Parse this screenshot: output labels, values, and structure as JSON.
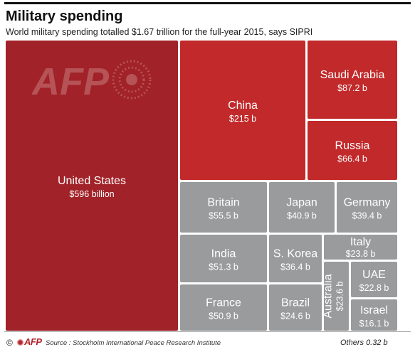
{
  "header": {
    "title": "Military spending",
    "subtitle": "World military spending totalled $1.67 trillion for the full-year 2015, says SIPRI"
  },
  "footer": {
    "copyright": "©",
    "brand": "AFP",
    "source": "Source : Stockholm International Peace Research Institute",
    "others": "Others 0.32 b"
  },
  "watermark_text": "AFP",
  "colors": {
    "us": "#a12228",
    "red": "#c2292a",
    "gray": "#9a9b9d"
  },
  "chart_data": {
    "type": "treemap",
    "title": "Military spending",
    "subtitle": "World military spending totalled $1.67 trillion for the full-year 2015, says SIPRI",
    "unit": "billion USD",
    "items": [
      {
        "name": "United States",
        "value": 596,
        "label": "$596 billion",
        "group": "us"
      },
      {
        "name": "China",
        "value": 215,
        "label": "$215 b",
        "group": "red"
      },
      {
        "name": "Saudi Arabia",
        "value": 87.2,
        "label": "$87.2 b",
        "group": "red"
      },
      {
        "name": "Russia",
        "value": 66.4,
        "label": "$66.4 b",
        "group": "red"
      },
      {
        "name": "Britain",
        "value": 55.5,
        "label": "$55.5 b",
        "group": "gray"
      },
      {
        "name": "Japan",
        "value": 40.9,
        "label": "$40.9 b",
        "group": "gray"
      },
      {
        "name": "Germany",
        "value": 39.4,
        "label": "$39.4 b",
        "group": "gray"
      },
      {
        "name": "India",
        "value": 51.3,
        "label": "$51.3 b",
        "group": "gray"
      },
      {
        "name": "S. Korea",
        "value": 36.4,
        "label": "$36.4 b",
        "group": "gray"
      },
      {
        "name": "Italy",
        "value": 23.8,
        "label": "$23.8 b",
        "group": "gray"
      },
      {
        "name": "France",
        "value": 50.9,
        "label": "$50.9 b",
        "group": "gray"
      },
      {
        "name": "Brazil",
        "value": 24.6,
        "label": "$24.6 b",
        "group": "gray"
      },
      {
        "name": "Australia",
        "value": 23.6,
        "label": "$23.6 b",
        "group": "gray"
      },
      {
        "name": "UAE",
        "value": 22.8,
        "label": "$22.8 b",
        "group": "gray"
      },
      {
        "name": "Israel",
        "value": 16.1,
        "label": "$16.1 b",
        "group": "gray"
      }
    ],
    "others": {
      "name": "Others",
      "value": 0.32,
      "label": "Others 0.32 b"
    }
  }
}
